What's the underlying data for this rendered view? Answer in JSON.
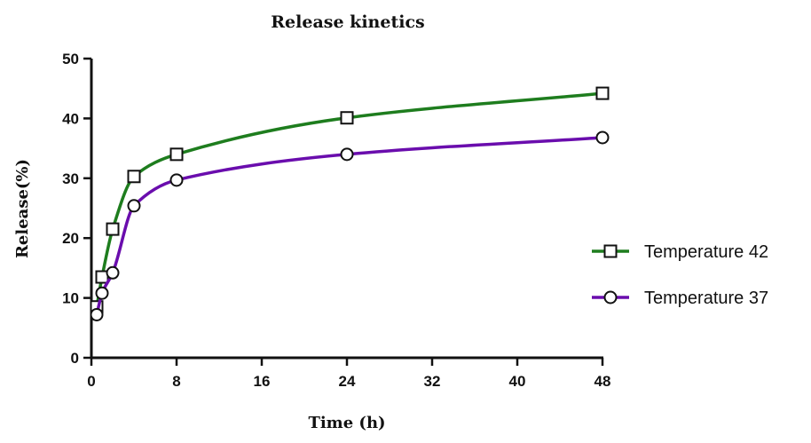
{
  "chart_data": {
    "type": "line",
    "title": "Release kinetics",
    "xlabel": "Time (h)",
    "ylabel": "Release(%)",
    "xlim": [
      0,
      48
    ],
    "ylim": [
      0,
      50
    ],
    "xticks": [
      0,
      8,
      16,
      24,
      32,
      40,
      48
    ],
    "yticks": [
      0,
      10,
      20,
      30,
      40,
      50
    ],
    "grid": false,
    "legend_position": "right",
    "series": [
      {
        "name": "Temperature 42",
        "color": "#1e7d1e",
        "marker": "square",
        "x": [
          0.5,
          1,
          2,
          4,
          8,
          24,
          48
        ],
        "y": [
          8.5,
          13.5,
          21.5,
          30.3,
          34.0,
          40.1,
          44.2
        ]
      },
      {
        "name": "Temperature 37",
        "color": "#6a0dad",
        "marker": "circle",
        "x": [
          0.5,
          1,
          2,
          4,
          8,
          24,
          48
        ],
        "y": [
          7.2,
          10.8,
          14.2,
          25.4,
          29.7,
          34.0,
          36.8
        ]
      }
    ]
  }
}
